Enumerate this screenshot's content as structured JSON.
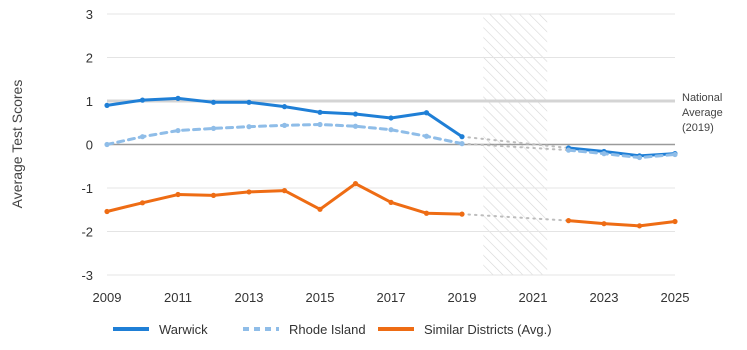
{
  "chart_data": {
    "type": "line",
    "ylabel": "Average Test Scores",
    "xlabel": "",
    "title": "",
    "xlim": [
      2009,
      2025
    ],
    "ylim": [
      -3,
      3
    ],
    "x_ticks": [
      2009,
      2011,
      2013,
      2015,
      2017,
      2019,
      2021,
      2023,
      2025
    ],
    "y_ticks": [
      -3,
      -2,
      -1,
      0,
      1,
      2,
      3
    ],
    "gap_years": [
      2020,
      2021
    ],
    "reference_line": {
      "value": 1,
      "label_lines": [
        "National",
        "Average",
        "(2019)"
      ]
    },
    "series": [
      {
        "name": "Warwick",
        "color": "#1f7fd6",
        "style": "solid",
        "x": [
          2009,
          2010,
          2011,
          2012,
          2013,
          2014,
          2015,
          2016,
          2017,
          2018,
          2019,
          2022,
          2023,
          2024,
          2025
        ],
        "values": [
          0.9,
          1.02,
          1.06,
          0.97,
          0.97,
          0.87,
          0.74,
          0.7,
          0.61,
          0.73,
          0.18,
          -0.08,
          -0.16,
          -0.26,
          -0.21
        ]
      },
      {
        "name": "Rhode Island",
        "color": "#8fbde8",
        "style": "dashed",
        "x": [
          2009,
          2010,
          2011,
          2012,
          2013,
          2014,
          2015,
          2016,
          2017,
          2018,
          2019,
          2022,
          2023,
          2024,
          2025
        ],
        "values": [
          0.0,
          0.18,
          0.32,
          0.37,
          0.41,
          0.44,
          0.46,
          0.42,
          0.34,
          0.19,
          0.02,
          -0.13,
          -0.21,
          -0.3,
          -0.23
        ]
      },
      {
        "name": "Similar Districts (Avg.)",
        "color": "#ee6c14",
        "style": "solid",
        "x": [
          2009,
          2010,
          2011,
          2012,
          2013,
          2014,
          2015,
          2016,
          2017,
          2018,
          2019,
          2022,
          2023,
          2024,
          2025
        ],
        "values": [
          -1.54,
          -1.34,
          -1.15,
          -1.17,
          -1.09,
          -1.06,
          -1.49,
          -0.9,
          -1.33,
          -1.58,
          -1.6,
          -1.75,
          -1.82,
          -1.87,
          -1.77
        ]
      }
    ],
    "legend_position": "bottom-left"
  }
}
